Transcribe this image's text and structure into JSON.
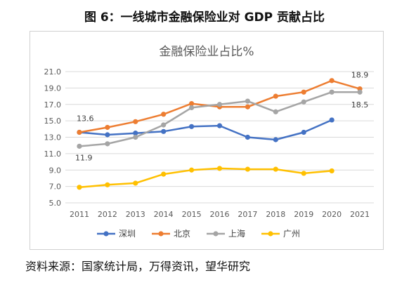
{
  "figure_title": "图 6：一线城市金融保险业对 GDP 贡献占比",
  "source": "资料来源：国家统计局，万得资讯，望华研究",
  "chart_data": {
    "type": "line",
    "title": "金融保险业占比%",
    "xlabel": "",
    "ylabel": "",
    "x": [
      "2011",
      "2012",
      "2013",
      "2014",
      "2015",
      "2016",
      "2017",
      "2018",
      "2019",
      "2020",
      "2021"
    ],
    "ylim": [
      5.0,
      21.0
    ],
    "yticks": [
      "5.0",
      "7.0",
      "9.0",
      "11.0",
      "13.0",
      "15.0",
      "17.0",
      "19.0",
      "21.0"
    ],
    "grid": true,
    "legend_position": "bottom",
    "series": [
      {
        "name": "深圳",
        "color": "#4472C4",
        "values": [
          13.6,
          13.3,
          13.5,
          13.7,
          14.3,
          14.4,
          13.0,
          12.7,
          13.6,
          15.1,
          null
        ]
      },
      {
        "name": "北京",
        "color": "#ED7D31",
        "values": [
          13.6,
          14.2,
          14.9,
          15.8,
          17.1,
          16.7,
          16.7,
          18.0,
          18.5,
          19.9,
          18.9
        ]
      },
      {
        "name": "上海",
        "color": "#A5A5A5",
        "values": [
          11.9,
          12.2,
          13.0,
          14.5,
          16.6,
          17.0,
          17.4,
          16.1,
          17.3,
          18.5,
          18.5
        ]
      },
      {
        "name": "广州",
        "color": "#FFC000",
        "values": [
          6.9,
          7.2,
          7.4,
          8.5,
          9.0,
          9.2,
          9.1,
          9.1,
          8.6,
          8.9,
          null
        ]
      }
    ],
    "annotations": [
      {
        "text": "13.6",
        "series": "北京",
        "x": "2011"
      },
      {
        "text": "11.9",
        "series": "上海",
        "x": "2011"
      },
      {
        "text": "18.9",
        "series": "北京",
        "x": "2021"
      },
      {
        "text": "18.5",
        "series": "上海",
        "x": "2021"
      }
    ]
  }
}
